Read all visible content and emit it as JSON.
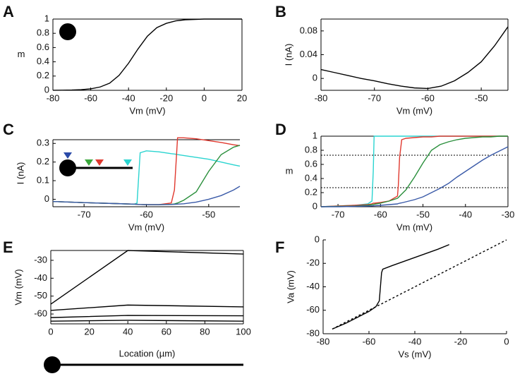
{
  "chart_data": [
    {
      "type": "line",
      "panel_label": "A",
      "xlabel": "Vm (mV)",
      "ylabel": "m",
      "x": [
        -80,
        -75,
        -70,
        -65,
        -60,
        -55,
        -50,
        -45,
        -40,
        -35,
        -30,
        -25,
        -20,
        -15,
        -10,
        -5,
        0,
        5,
        10,
        15,
        20
      ],
      "series": [
        {
          "color": "#000000",
          "values": [
            0.001,
            0.002,
            0.004,
            0.009,
            0.021,
            0.047,
            0.1,
            0.21,
            0.38,
            0.58,
            0.76,
            0.88,
            0.94,
            0.975,
            0.99,
            0.995,
            1,
            1,
            1,
            1,
            1
          ]
        }
      ],
      "xlim": [
        -80,
        20
      ],
      "xticks": [
        -80,
        -60,
        -40,
        -20,
        0,
        20
      ],
      "ylim": [
        0,
        1
      ],
      "yticks": [
        0,
        0.2,
        0.4,
        0.6,
        0.8,
        1
      ]
    },
    {
      "type": "line",
      "panel_label": "B",
      "xlabel": "Vm (mV)",
      "ylabel": "I (nA)",
      "x": [
        -80,
        -77.5,
        -75,
        -72.5,
        -70,
        -67.5,
        -65,
        -62.5,
        -60,
        -57.5,
        -55,
        -52.5,
        -50,
        -47.5,
        -45
      ],
      "series": [
        {
          "color": "#000000",
          "values": [
            0.015,
            0.01,
            0.005,
            0,
            -0.004,
            -0.009,
            -0.013,
            -0.016,
            -0.017,
            -0.013,
            -0.004,
            0.01,
            0.028,
            0.055,
            0.087
          ]
        }
      ],
      "xlim": [
        -80,
        -45
      ],
      "xticks": [
        -80,
        -70,
        -60,
        -50
      ],
      "ylim": [
        -0.02,
        0.1
      ],
      "yticks": [
        0,
        0.04,
        0.08
      ]
    },
    {
      "type": "line",
      "panel_label": "C",
      "xlabel": "Vm (mV)",
      "ylabel": "I (nA)",
      "x": [
        -75,
        -70,
        -65,
        -62,
        -61.5,
        -61,
        -60,
        -58,
        -56,
        -55.5,
        -55,
        -54,
        -52,
        -50,
        -48,
        -46,
        -45
      ],
      "series": [
        {
          "color": "#2ad4d0",
          "values": [
            -0.012,
            -0.018,
            -0.023,
            -0.027,
            -0.02,
            0.25,
            0.26,
            0.255,
            0.245,
            0.243,
            0.24,
            0.235,
            0.225,
            0.215,
            0.2,
            0.185,
            0.178
          ]
        },
        {
          "color": "#e0382e",
          "values": [
            -0.012,
            -0.018,
            -0.023,
            -0.026,
            -0.027,
            -0.028,
            -0.029,
            -0.029,
            -0.02,
            0.05,
            0.33,
            0.33,
            0.325,
            0.315,
            0.305,
            0.293,
            0.288
          ]
        },
        {
          "color": "#2a8f3c",
          "values": [
            -0.012,
            -0.018,
            -0.023,
            -0.026,
            -0.027,
            -0.028,
            -0.029,
            -0.029,
            -0.027,
            -0.025,
            -0.02,
            -0.005,
            0.04,
            0.15,
            0.24,
            0.28,
            0.29
          ]
        },
        {
          "color": "#3a5aa8",
          "values": [
            -0.012,
            -0.018,
            -0.023,
            -0.026,
            -0.027,
            -0.028,
            -0.029,
            -0.029,
            -0.028,
            -0.027,
            -0.026,
            -0.024,
            -0.015,
            0,
            0.02,
            0.05,
            0.07
          ]
        }
      ],
      "xlim": [
        -75,
        -45
      ],
      "xticks": [
        -70,
        -60,
        -50
      ],
      "ylim": [
        -0.04,
        0.32
      ],
      "yticks": [
        0,
        0.1,
        0.2,
        0.3
      ]
    },
    {
      "type": "line",
      "panel_label": "D",
      "xlabel": "Vm (mV)",
      "ylabel": "m",
      "x": [
        -74,
        -70,
        -66,
        -63,
        -62,
        -61.7,
        -61.5,
        -60,
        -58,
        -56,
        -55.8,
        -55.5,
        -55,
        -54,
        -52,
        -50,
        -48,
        -46,
        -44,
        -42,
        -40,
        -38,
        -36,
        -34,
        -32,
        -30
      ],
      "series": [
        {
          "color": "#2ad4d0",
          "values": [
            0,
            0.01,
            0.02,
            0.04,
            0.08,
            0.5,
            1,
            1,
            1,
            1,
            1,
            1,
            1,
            1,
            1,
            1,
            1,
            1,
            1,
            1,
            1,
            1,
            1,
            1,
            1,
            1
          ]
        },
        {
          "color": "#e0382e",
          "values": [
            0,
            0.01,
            0.02,
            0.03,
            0.04,
            0.05,
            0.05,
            0.06,
            0.08,
            0.15,
            0.3,
            0.7,
            0.95,
            0.97,
            0.98,
            0.99,
            0.99,
            1,
            1,
            1,
            1,
            1,
            1,
            1,
            1,
            1
          ]
        },
        {
          "color": "#2a8f3c",
          "values": [
            0,
            0.005,
            0.01,
            0.02,
            0.03,
            0.03,
            0.035,
            0.05,
            0.08,
            0.12,
            0.13,
            0.15,
            0.18,
            0.24,
            0.42,
            0.62,
            0.8,
            0.88,
            0.92,
            0.95,
            0.97,
            0.98,
            0.99,
            0.99,
            1,
            1
          ]
        },
        {
          "color": "#3a5aa8",
          "values": [
            0,
            0,
            0.005,
            0.01,
            0.012,
            0.013,
            0.014,
            0.02,
            0.03,
            0.04,
            0.045,
            0.05,
            0.055,
            0.07,
            0.1,
            0.14,
            0.2,
            0.26,
            0.33,
            0.42,
            0.5,
            0.58,
            0.66,
            0.73,
            0.79,
            0.85
          ]
        }
      ],
      "hlines": [
        0.73,
        0.27
      ],
      "xlim": [
        -74,
        -30
      ],
      "xticks": [
        -70,
        -60,
        -50,
        -40,
        -30
      ],
      "ylim": [
        0,
        1
      ],
      "yticks": [
        0,
        0.2,
        0.4,
        0.6,
        0.8,
        1
      ]
    },
    {
      "type": "line",
      "panel_label": "E",
      "xlabel": "Location (µm)",
      "ylabel": "Vm (mV)",
      "x": [
        0,
        40,
        100
      ],
      "series": [
        {
          "color": "#000000",
          "values": [
            -54.5,
            -24.5,
            -26.5
          ]
        },
        {
          "color": "#000000",
          "values": [
            -58,
            -55,
            -56
          ]
        },
        {
          "color": "#000000",
          "values": [
            -62,
            -60.8,
            -61
          ]
        },
        {
          "color": "#000000",
          "values": [
            -64,
            -63.5,
            -64
          ]
        }
      ],
      "xlim": [
        0,
        100
      ],
      "xticks": [
        0,
        20,
        40,
        60,
        80,
        100
      ],
      "ylim": [
        -65.5,
        -24.5
      ],
      "yticks": [
        -60,
        -50,
        -40,
        -30
      ]
    },
    {
      "type": "line",
      "panel_label": "F",
      "xlabel": "Vs (mV)",
      "ylabel": "Va (mV)",
      "series": [
        {
          "color": "#000000",
          "x": [
            -76,
            -70,
            -65,
            -60,
            -57,
            -55.5,
            -55,
            -54.5,
            -54,
            -50,
            -40,
            -30,
            -25
          ],
          "values": [
            -76,
            -71,
            -66,
            -61,
            -57,
            -52,
            -40,
            -28,
            -25,
            -22,
            -15,
            -8,
            -4
          ]
        },
        {
          "color": "#000000",
          "dash": true,
          "x": [
            -76,
            0
          ],
          "values": [
            -76,
            0
          ]
        }
      ],
      "xlim": [
        -80,
        0
      ],
      "xticks": [
        -80,
        -60,
        -40,
        -20,
        0
      ],
      "ylim": [
        -80,
        0
      ],
      "yticks": [
        -80,
        -60,
        -40,
        -20,
        0
      ]
    }
  ]
}
